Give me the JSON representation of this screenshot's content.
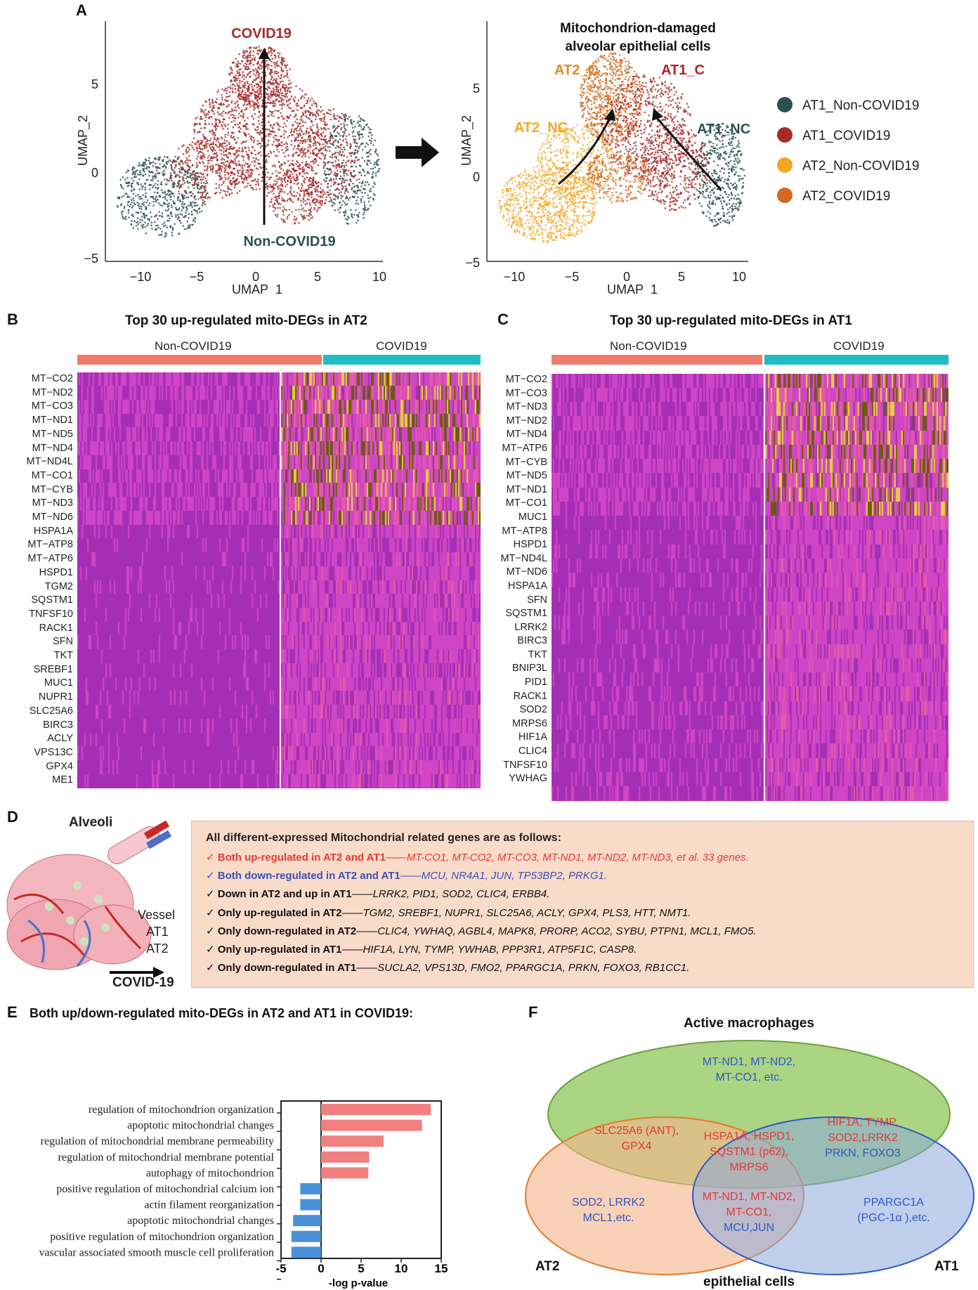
{
  "panels": {
    "A": "A",
    "B": "B",
    "C": "C",
    "D": "D",
    "E": "E",
    "F": "F"
  },
  "panelA": {
    "left": {
      "top_label": "COVID19",
      "bottom_label": "Non-COVID19",
      "xlabel": "UMAP_1",
      "ylabel": "UMAP_2",
      "xticks": [
        "−10",
        "−5",
        "0",
        "5",
        "10"
      ],
      "yticks": [
        "5",
        "0",
        "−5"
      ]
    },
    "right": {
      "title_line1": "Mitochondrion-damaged",
      "title_line2": "alveolar epithelial cells",
      "labels": {
        "AT2_C": "AT2_C",
        "AT1_C": "AT1_C",
        "AT2_NC": "AT2_NC",
        "AT1_NC": "AT1_NC"
      },
      "xlabel": "UMAP_1",
      "ylabel": "UMAP_2",
      "xticks": [
        "−10",
        "−5",
        "0",
        "5",
        "10"
      ],
      "yticks": [
        "5",
        "0",
        "−5"
      ]
    },
    "legend": [
      {
        "label": "AT1_Non-COVID19",
        "color": "#2e4f4f"
      },
      {
        "label": "AT1_COVID19",
        "color": "#a52a2a"
      },
      {
        "label": "AT2_Non-COVID19",
        "color": "#f5a623"
      },
      {
        "label": "AT2_COVID19",
        "color": "#d2691e"
      }
    ]
  },
  "panelB": {
    "title": "Top 30 up-regulated mito-DEGs in AT2",
    "group_left": "Non-COVID19",
    "group_right": "COVID19",
    "genes": [
      "MT−CO2",
      "MT−ND2",
      "MT−CO3",
      "MT−ND1",
      "MT−ND5",
      "MT−ND4",
      "MT−ND4L",
      "MT−CO1",
      "MT−CYB",
      "MT−ND3",
      "MT−ND6",
      "HSPA1A",
      "MT−ATP8",
      "MT−ATP6",
      "HSPD1",
      "TGM2",
      "SQSTM1",
      "TNFSF10",
      "RACK1",
      "SFN",
      "TKT",
      "SREBF1",
      "MUC1",
      "NUPR1",
      "SLC25A6",
      "BIRC3",
      "ACLY",
      "VPS13C",
      "GPX4",
      "ME1"
    ]
  },
  "panelC": {
    "title": "Top 30 up-regulated mito-DEGs in AT1",
    "group_left": "Non-COVID19",
    "group_right": "COVID19",
    "genes": [
      "MT−CO2",
      "MT−CO3",
      "MT−ND3",
      "MT−ND2",
      "MT−ND4",
      "MT−ATP6",
      "MT−CYB",
      "MT−ND5",
      "MT−ND1",
      "MT−CO1",
      "MUC1",
      "MT−ATP8",
      "HSPD1",
      "MT−ND4L",
      "MT−ND6",
      "HSPA1A",
      "SFN",
      "SQSTM1",
      "LRRK2",
      "BIRC3",
      "TKT",
      "BNIP3L",
      "PID1",
      "RACK1",
      "SOD2",
      "MRPS6",
      "HIF1A",
      "CLIC4",
      "TNFSF10",
      "YWHAG"
    ]
  },
  "panelD": {
    "alveoli": "Alveoli",
    "vessel": "Vessel",
    "at1": "AT1",
    "at2": "AT2",
    "covid": "COVID-19",
    "header": "All different-expressed Mitochondrial related genes are as follows:",
    "lines": [
      {
        "check": "✓",
        "head": "Both up-regulated in AT2 and AT1",
        "sep": "——",
        "genes": "MT-CO1, MT-CO2, MT-CO3, MT-ND1, MT-ND2, MT-ND3, et al. 33 genes.",
        "color": "#e53935"
      },
      {
        "check": "✓",
        "head": "Both down-regulated in AT2 and AT1",
        "sep": "——",
        "genes": "MCU, NR4A1, JUN, TP53BP2, PRKG1.",
        "color": "#3f51b5"
      },
      {
        "check": "✓",
        "head": "Down in AT2 and up in AT1",
        "sep": "——",
        "genes": "LRRK2, PID1, SOD2, CLIC4, ERBB4.",
        "color": "#111111"
      },
      {
        "check": "✓",
        "head": "Only up-regulated in AT2",
        "sep": "——",
        "genes": "TGM2, SREBF1, NUPR1, SLC25A6, ACLY, GPX4, PLS3, HTT, NMT1.",
        "color": "#111111"
      },
      {
        "check": "✓",
        "head": "Only down-regulated in AT2",
        "sep": "——",
        "genes": "CLIC4, YWHAQ, AGBL4, MAPK8, PRORP, ACO2, SYBU, PTPN1, MCL1, FMO5.",
        "color": "#111111"
      },
      {
        "check": "✓",
        "head": "Only up-regulated in AT1",
        "sep": "——",
        "genes": "HIF1A, LYN, TYMP, YWHAB, PPP3R1, ATP5F1C, CASP8.",
        "color": "#111111"
      },
      {
        "check": "✓",
        "head": "Only down-regulated in AT1",
        "sep": "——",
        "genes": "SUCLA2, VPS13D, FMO2, PPARGC1A, PRKN, FOXO3, RB1CC1.",
        "color": "#111111"
      }
    ]
  },
  "chart_data": {
    "type": "bar",
    "orientation": "horizontal",
    "title": "Both up/down-regulated mito-DEGs in AT2 and AT1 in COVID19:",
    "xlabel": "-log p-value",
    "xlim": [
      -5,
      15
    ],
    "xticks": [
      "-5",
      "0",
      "5",
      "10",
      "15"
    ],
    "categories": [
      "regulation of mitochondrion organization",
      "apoptotic mitochondrial changes",
      "regulation of mitochondrial membrane permeability",
      "regulation of mitochondrial membrane potential",
      "autophagy of mitochondrion",
      "positive regulation of mitochondrial calcium ion",
      "actin filament reorganization",
      "apoptotic mitochondrial changes",
      "positive regulation of mitochondrion organization",
      "vascular associated smooth muscle cell proliferation"
    ],
    "values": [
      13.7,
      12.6,
      7.8,
      6.0,
      5.9,
      -2.6,
      -2.6,
      -3.5,
      -3.7,
      -3.7
    ],
    "colors": {
      "up": "#f28080",
      "down": "#4a90d9"
    }
  },
  "panelF": {
    "top": "Active macrophages",
    "bottom": "epithelial cells",
    "at2": "AT2",
    "at1": "AT1",
    "mac_only": [
      "MT-ND1, MT-ND2,",
      "MT-CO1, etc."
    ],
    "mac_at2": [
      "SLC25A6 (ANT),",
      "GPX4"
    ],
    "center": [
      "HSPA1A, HSPD1,",
      "SQSTM1 (p62),",
      "MRPS6"
    ],
    "mac_at1_red": [
      "HIF1A, TYMP,",
      "SOD2,LRRK2"
    ],
    "mac_at1_blue": "PRKN, FOXO3",
    "at2_only": [
      "SOD2, LRRK2",
      "MCL1,etc."
    ],
    "at2_at1_red": [
      "MT-ND1, MT-ND2,",
      "MT-CO1,"
    ],
    "at2_at1_blue": "MCU,JUN",
    "at1_only": [
      "PPARGC1A",
      "(PGC-1α ),etc."
    ]
  }
}
